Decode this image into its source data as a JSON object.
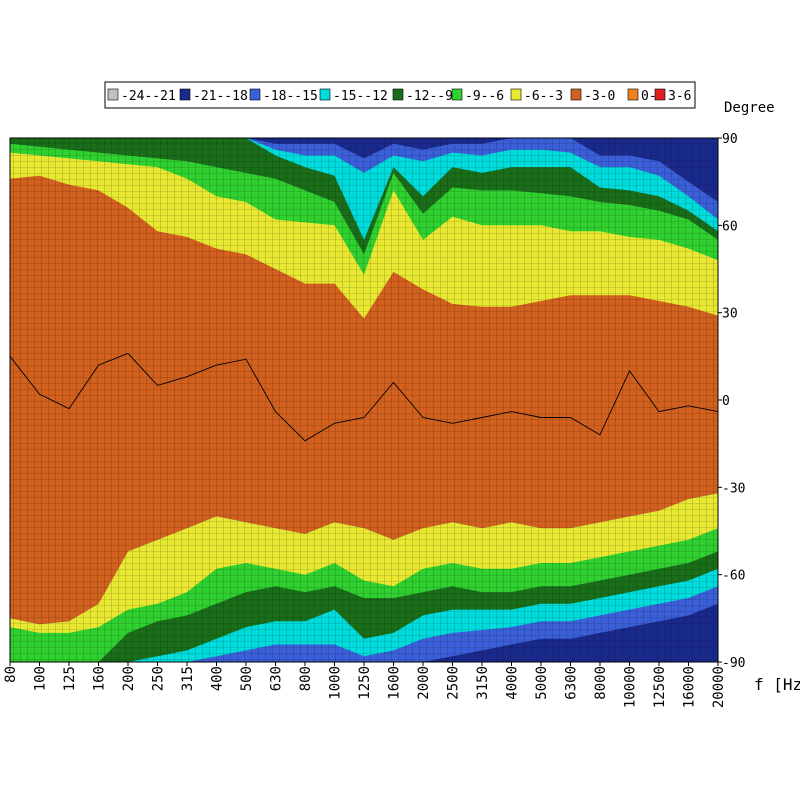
{
  "chart_data": {
    "type": "heatmap",
    "title": "",
    "xlabel": "f [Hz]",
    "ylabel": "Degree",
    "x_scale": "log",
    "x_ticks": [
      "80",
      "100",
      "125",
      "160",
      "200",
      "250",
      "315",
      "400",
      "500",
      "630",
      "800",
      "1000",
      "1250",
      "1600",
      "2000",
      "2500",
      "3150",
      "4000",
      "5000",
      "6300",
      "8000",
      "10000",
      "12500",
      "16000",
      "20000"
    ],
    "y_ticks": [
      "90",
      "60",
      "30",
      "0",
      "-30",
      "-60",
      "-90"
    ],
    "ylim": [
      -90,
      90
    ],
    "legend_position": "top",
    "legend": [
      {
        "label": "-24--21",
        "color": "#c0c0c0"
      },
      {
        "label": "-21--18",
        "color": "#1a2a8c"
      },
      {
        "label": "-18--15",
        "color": "#3a5fd8"
      },
      {
        "label": "-15--12",
        "color": "#00dcdc"
      },
      {
        "label": "-12--9",
        "color": "#1a6e1a"
      },
      {
        "label": "-9--6",
        "color": "#2fd02f"
      },
      {
        "label": "-6--3",
        "color": "#e8e832"
      },
      {
        "label": "-3-0",
        "color": "#d2601e"
      },
      {
        "label": "0-3",
        "color": "#f08020"
      },
      {
        "label": "3-6",
        "color": "#e02020"
      }
    ],
    "contour_boundaries_deg": {
      "x_hz": [
        80,
        100,
        125,
        160,
        200,
        250,
        315,
        400,
        500,
        630,
        800,
        1000,
        1250,
        1600,
        2000,
        2500,
        3150,
        4000,
        5000,
        6300,
        8000,
        10000,
        12500,
        16000,
        20000
      ],
      "upper": [
        [
          90,
          90,
          90,
          90,
          90,
          90,
          90,
          90,
          90,
          88,
          88,
          88,
          83,
          88,
          86,
          88,
          88,
          90,
          90,
          90,
          84,
          84,
          82,
          75,
          68
        ],
        [
          90,
          90,
          90,
          90,
          90,
          90,
          90,
          90,
          90,
          86,
          84,
          84,
          78,
          84,
          82,
          85,
          84,
          86,
          86,
          85,
          80,
          80,
          77,
          70,
          62
        ],
        [
          90,
          90,
          90,
          90,
          90,
          90,
          90,
          90,
          90,
          84,
          80,
          77,
          55,
          80,
          70,
          80,
          78,
          80,
          80,
          80,
          73,
          72,
          70,
          65,
          58
        ],
        [
          88,
          87,
          86,
          85,
          84,
          83,
          82,
          80,
          78,
          76,
          72,
          68,
          50,
          78,
          64,
          73,
          72,
          72,
          71,
          70,
          68,
          67,
          65,
          62,
          55
        ],
        [
          85,
          84,
          83,
          82,
          81,
          80,
          76,
          70,
          68,
          62,
          61,
          60,
          43,
          72,
          55,
          63,
          60,
          60,
          60,
          58,
          58,
          56,
          55,
          52,
          48
        ],
        [
          76,
          77,
          74,
          72,
          66,
          58,
          56,
          52,
          50,
          45,
          40,
          40,
          28,
          44,
          38,
          33,
          32,
          32,
          34,
          36,
          36,
          36,
          34,
          32,
          29
        ]
      ],
      "lower": [
        [
          -75,
          -77,
          -76,
          -70,
          -52,
          -48,
          -44,
          -40,
          -42,
          -44,
          -46,
          -42,
          -44,
          -48,
          -44,
          -42,
          -44,
          -42,
          -44,
          -44,
          -42,
          -40,
          -38,
          -34,
          -32
        ],
        [
          -78,
          -80,
          -80,
          -78,
          -72,
          -70,
          -66,
          -58,
          -56,
          -58,
          -60,
          -56,
          -62,
          -64,
          -58,
          -56,
          -58,
          -58,
          -56,
          -56,
          -54,
          -52,
          -50,
          -48,
          -44
        ],
        [
          -90,
          -90,
          -90,
          -90,
          -80,
          -76,
          -74,
          -70,
          -66,
          -64,
          -66,
          -64,
          -68,
          -68,
          -66,
          -64,
          -66,
          -66,
          -64,
          -64,
          -62,
          -60,
          -58,
          -56,
          -52
        ],
        [
          -90,
          -90,
          -90,
          -90,
          -90,
          -88,
          -86,
          -82,
          -78,
          -76,
          -76,
          -72,
          -82,
          -80,
          -74,
          -72,
          -72,
          -72,
          -70,
          -70,
          -68,
          -66,
          -64,
          -62,
          -58
        ],
        [
          -90,
          -90,
          -90,
          -90,
          -90,
          -90,
          -90,
          -88,
          -86,
          -84,
          -84,
          -84,
          -88,
          -86,
          -82,
          -80,
          -79,
          -78,
          -76,
          -76,
          -74,
          -72,
          -70,
          -68,
          -64
        ],
        [
          -90,
          -90,
          -90,
          -90,
          -90,
          -90,
          -90,
          -90,
          -90,
          -90,
          -90,
          -90,
          -90,
          -90,
          -90,
          -88,
          -86,
          -84,
          -82,
          -82,
          -80,
          -78,
          -76,
          -74,
          -70
        ]
      ],
      "band_colors": [
        "#1a2a8c",
        "#3a5fd8",
        "#00dcdc",
        "#1a6e1a",
        "#2fd02f",
        "#e8e832"
      ],
      "top_gray_from_hz": 12500
    },
    "zero_db_contour": {
      "x_hz": [
        80,
        100,
        125,
        160,
        200,
        250,
        315,
        400,
        500,
        630,
        800,
        1000,
        1250,
        1600,
        2000,
        2500,
        3150,
        4000,
        5000,
        6300,
        8000,
        10000,
        12500,
        16000,
        20000
      ],
      "deg": [
        15,
        2,
        -3,
        12,
        16,
        5,
        8,
        12,
        14,
        -4,
        -14,
        -8,
        -6,
        6,
        -6,
        -8,
        -6,
        -4,
        -6,
        -6,
        -12,
        10,
        -4,
        -2,
        -4
      ]
    }
  }
}
